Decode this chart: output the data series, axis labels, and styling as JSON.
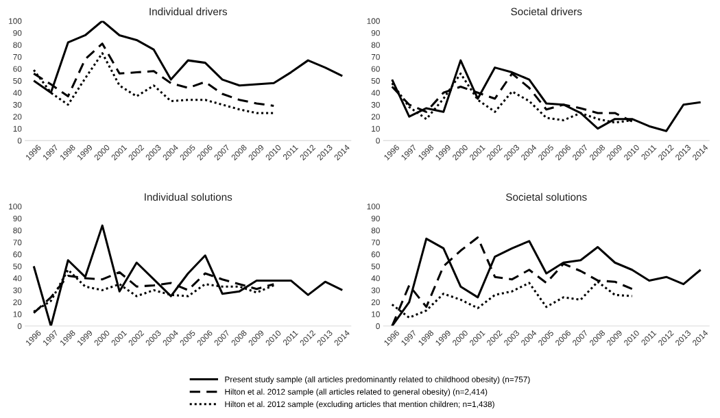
{
  "chart_data": [
    {
      "type": "line",
      "title": "Individual drivers",
      "categories": [
        "1996",
        "1997",
        "1998",
        "1999",
        "2000",
        "2001",
        "2002",
        "2003",
        "2004",
        "2005",
        "2006",
        "2007",
        "2008",
        "2009",
        "2010",
        "2011",
        "2012",
        "2013",
        "2014"
      ],
      "ylim": [
        0,
        100
      ],
      "yticks": [
        0,
        10,
        20,
        30,
        40,
        50,
        60,
        70,
        80,
        90,
        100
      ],
      "legend": "bottom",
      "marker": "none",
      "series": [
        {
          "name": "Present study sample (all articles predominantly related to childhood obesity) (n=757)",
          "color": "#000000",
          "line_style": "solid",
          "values": [
            50,
            40,
            82,
            88,
            100,
            88,
            84,
            76,
            51,
            67,
            65,
            51,
            46,
            47,
            48,
            57,
            67,
            61,
            54
          ]
        },
        {
          "name": "Hilton et al. 2012 sample (all articles related to general obesity) (n=2,414)",
          "color": "#000000",
          "line_style": "dashed",
          "values": [
            56,
            47,
            37,
            68,
            81,
            56,
            57,
            58,
            48,
            44,
            49,
            39,
            34,
            31,
            29,
            null,
            null,
            null,
            null
          ]
        },
        {
          "name": "Hilton et al. 2012 sample (excluding articles that mention children; n=1,438)",
          "color": "#000000",
          "line_style": "dotted",
          "values": [
            59,
            40,
            30,
            52,
            73,
            46,
            37,
            46,
            33,
            34,
            34,
            30,
            26,
            23,
            23,
            null,
            null,
            null,
            null
          ]
        }
      ]
    },
    {
      "type": "line",
      "title": "Societal drivers",
      "categories": [
        "1996",
        "1997",
        "1998",
        "1999",
        "2000",
        "2001",
        "2002",
        "2003",
        "2004",
        "2005",
        "2006",
        "2007",
        "2008",
        "2009",
        "2010",
        "2011",
        "2012",
        "2013",
        "2014"
      ],
      "ylim": [
        0,
        100
      ],
      "yticks": [
        0,
        10,
        20,
        30,
        40,
        50,
        60,
        70,
        80,
        90,
        100
      ],
      "marker": "none",
      "series": [
        {
          "color": "#000000",
          "line_style": "solid",
          "values": [
            51,
            20,
            27,
            24,
            67,
            35,
            61,
            57,
            51,
            31,
            30,
            23,
            10,
            18,
            18,
            12,
            8,
            30,
            32
          ]
        },
        {
          "color": "#000000",
          "line_style": "dashed",
          "values": [
            45,
            30,
            24,
            40,
            45,
            40,
            35,
            56,
            44,
            26,
            30,
            27,
            23,
            23,
            16,
            null,
            null,
            null,
            null
          ]
        },
        {
          "color": "#000000",
          "line_style": "dotted",
          "values": [
            48,
            28,
            18,
            35,
            56,
            34,
            24,
            41,
            33,
            19,
            17,
            23,
            18,
            15,
            17,
            null,
            null,
            null,
            null
          ]
        }
      ]
    },
    {
      "type": "line",
      "title": "Individual solutions",
      "categories": [
        "1996",
        "1997",
        "1998",
        "1999",
        "2000",
        "2001",
        "2002",
        "2003",
        "2004",
        "2005",
        "2006",
        "2007",
        "2008",
        "2009",
        "2010",
        "2011",
        "2012",
        "2013",
        "2014"
      ],
      "ylim": [
        0,
        100
      ],
      "yticks": [
        0,
        10,
        20,
        30,
        40,
        50,
        60,
        70,
        80,
        90,
        100
      ],
      "marker": "none",
      "series": [
        {
          "color": "#000000",
          "line_style": "solid",
          "values": [
            50,
            0,
            55,
            41,
            84,
            29,
            53,
            39,
            25,
            44,
            59,
            27,
            29,
            38,
            38,
            38,
            26,
            37,
            30
          ]
        },
        {
          "color": "#000000",
          "line_style": "dashed",
          "values": [
            11,
            24,
            42,
            40,
            39,
            45,
            33,
            34,
            36,
            30,
            44,
            39,
            35,
            31,
            35,
            null,
            null,
            null,
            null
          ]
        },
        {
          "color": "#000000",
          "line_style": "dotted",
          "values": [
            12,
            21,
            47,
            33,
            30,
            35,
            25,
            30,
            26,
            25,
            35,
            33,
            33,
            28,
            34,
            null,
            null,
            null,
            null
          ]
        }
      ]
    },
    {
      "type": "line",
      "title": "Societal solutions",
      "categories": [
        "1996",
        "1997",
        "1998",
        "1999",
        "2000",
        "2001",
        "2002",
        "2003",
        "2004",
        "2005",
        "2006",
        "2007",
        "2008",
        "2009",
        "2010",
        "2011",
        "2012",
        "2013",
        "2014"
      ],
      "ylim": [
        0,
        100
      ],
      "yticks": [
        0,
        10,
        20,
        30,
        40,
        50,
        60,
        70,
        80,
        90,
        100
      ],
      "marker": "none",
      "series": [
        {
          "color": "#000000",
          "line_style": "solid",
          "values": [
            0,
            20,
            73,
            65,
            33,
            24,
            58,
            65,
            71,
            44,
            53,
            55,
            66,
            53,
            47,
            38,
            41,
            35,
            47
          ]
        },
        {
          "color": "#000000",
          "line_style": "dashed",
          "values": [
            0,
            34,
            16,
            50,
            63,
            74,
            41,
            39,
            47,
            36,
            52,
            46,
            38,
            37,
            31,
            null,
            null,
            null,
            null
          ]
        },
        {
          "color": "#000000",
          "line_style": "dotted",
          "values": [
            18,
            7,
            13,
            27,
            22,
            15,
            26,
            29,
            36,
            16,
            24,
            22,
            37,
            26,
            25,
            null,
            null,
            null,
            null
          ]
        }
      ]
    }
  ]
}
